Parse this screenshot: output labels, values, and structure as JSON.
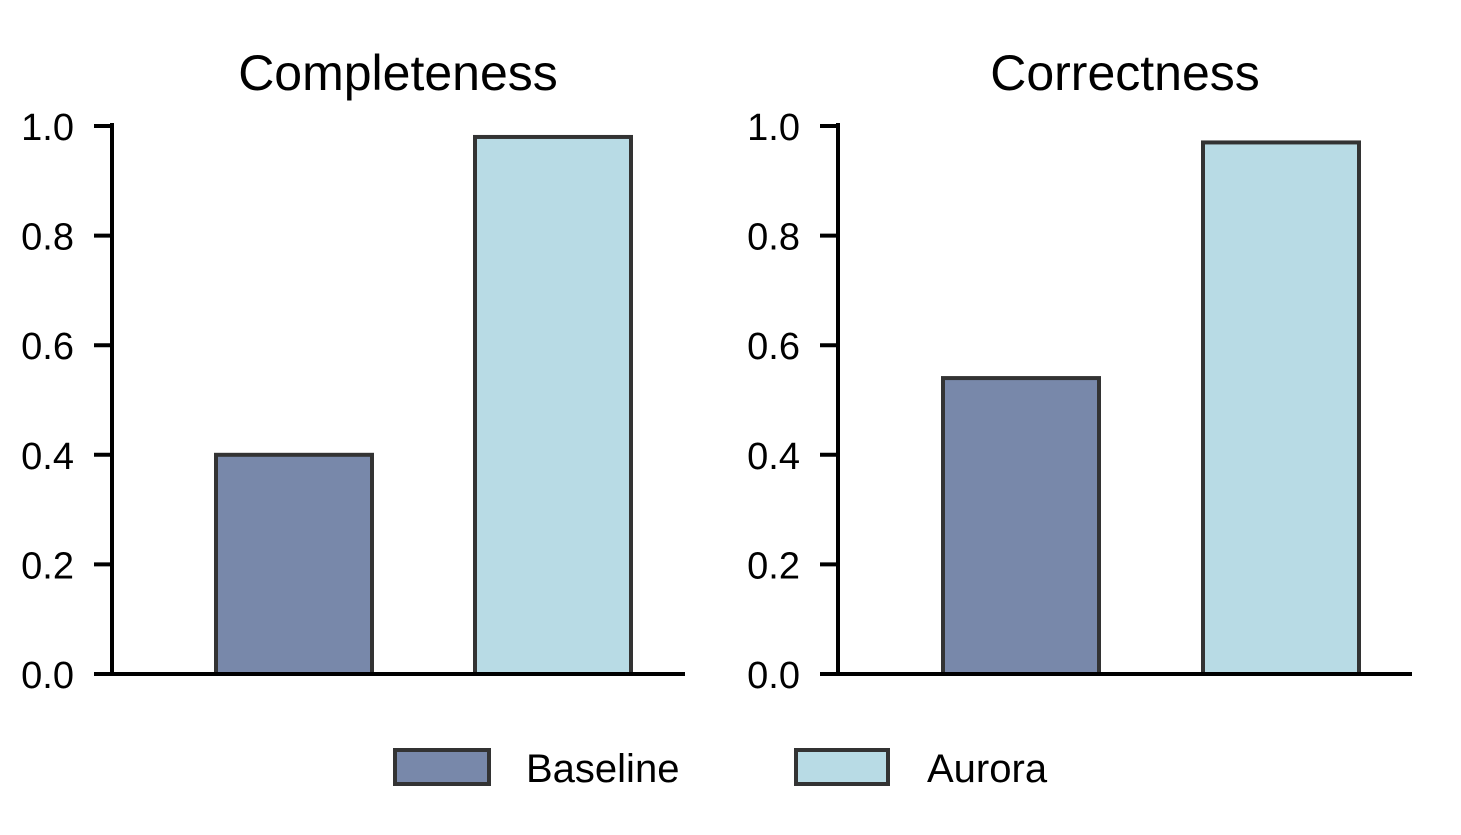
{
  "chart_data": [
    {
      "type": "bar",
      "title": "Completeness",
      "categories": [
        "Baseline",
        "Aurora"
      ],
      "values": [
        0.4,
        0.98
      ],
      "ylim": [
        0,
        1.0
      ],
      "yticks": [
        "0.0",
        "0.2",
        "0.4",
        "0.6",
        "0.8",
        "1.0"
      ],
      "xlabel": "",
      "ylabel": ""
    },
    {
      "type": "bar",
      "title": "Correctness",
      "categories": [
        "Baseline",
        "Aurora"
      ],
      "values": [
        0.54,
        0.97
      ],
      "ylim": [
        0,
        1.0
      ],
      "yticks": [
        "0.0",
        "0.2",
        "0.4",
        "0.6",
        "0.8",
        "1.0"
      ],
      "xlabel": "",
      "ylabel": ""
    }
  ],
  "legend": {
    "items": [
      {
        "label": "Baseline",
        "color": "#7888aa"
      },
      {
        "label": "Aurora",
        "color": "#b8dbe5"
      }
    ]
  },
  "colors": {
    "baseline": "#7888aa",
    "aurora": "#b8dbe5",
    "bar_edge": "#333333",
    "axis": "#000000"
  }
}
